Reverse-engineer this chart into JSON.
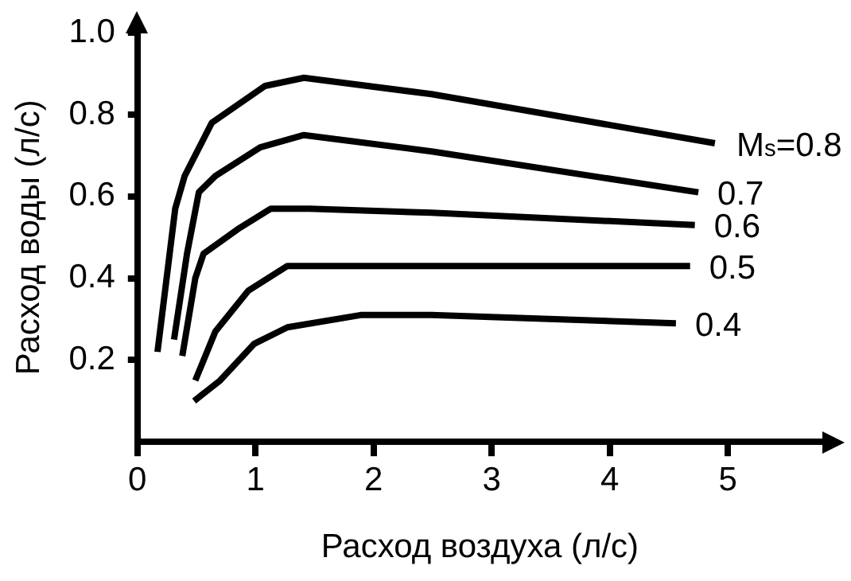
{
  "chart_data": {
    "type": "line",
    "xlabel": "Расход воздуха (л/с)",
    "ylabel": "Расход воды (л/с)",
    "xlim": [
      0,
      5.8
    ],
    "ylim": [
      0,
      1.0
    ],
    "xticks": [
      0,
      1,
      2,
      3,
      4,
      5
    ],
    "yticks": [
      0.2,
      0.4,
      0.6,
      0.8,
      {
        "value": 1.0,
        "label": "1.0"
      }
    ],
    "grid": false,
    "legend": false,
    "marker": "none",
    "line_style": "solid",
    "series": [
      {
        "name": "M$_{s}$=0.8",
        "color": "#000000",
        "x": [
          0.17,
          0.32,
          0.4,
          0.63,
          1.08,
          1.41,
          2.49,
          4.89
        ],
        "values": [
          0.22,
          0.57,
          0.65,
          0.78,
          0.87,
          0.89,
          0.85,
          0.73
        ]
      },
      {
        "name": "0.7",
        "color": "#000000",
        "x": [
          0.31,
          0.42,
          0.52,
          0.66,
          1.04,
          1.41,
          2.49,
          4.75
        ],
        "values": [
          0.25,
          0.46,
          0.61,
          0.65,
          0.72,
          0.75,
          0.71,
          0.61
        ]
      },
      {
        "name": "0.6",
        "color": "#000000",
        "x": [
          0.38,
          0.49,
          0.56,
          0.85,
          1.13,
          1.46,
          2.49,
          4.72
        ],
        "values": [
          0.21,
          0.4,
          0.46,
          0.52,
          0.57,
          0.57,
          0.56,
          0.53
        ]
      },
      {
        "name": "0.5",
        "color": "#000000",
        "x": [
          0.49,
          0.66,
          0.94,
          1.27,
          4.68
        ],
        "values": [
          0.15,
          0.27,
          0.37,
          0.43,
          0.43
        ]
      },
      {
        "name": "0.4",
        "color": "#000000",
        "x": [
          0.48,
          0.7,
          0.99,
          1.27,
          1.89,
          2.49,
          4.56
        ],
        "values": [
          0.1,
          0.15,
          0.24,
          0.28,
          0.31,
          0.31,
          0.29
        ]
      }
    ]
  }
}
